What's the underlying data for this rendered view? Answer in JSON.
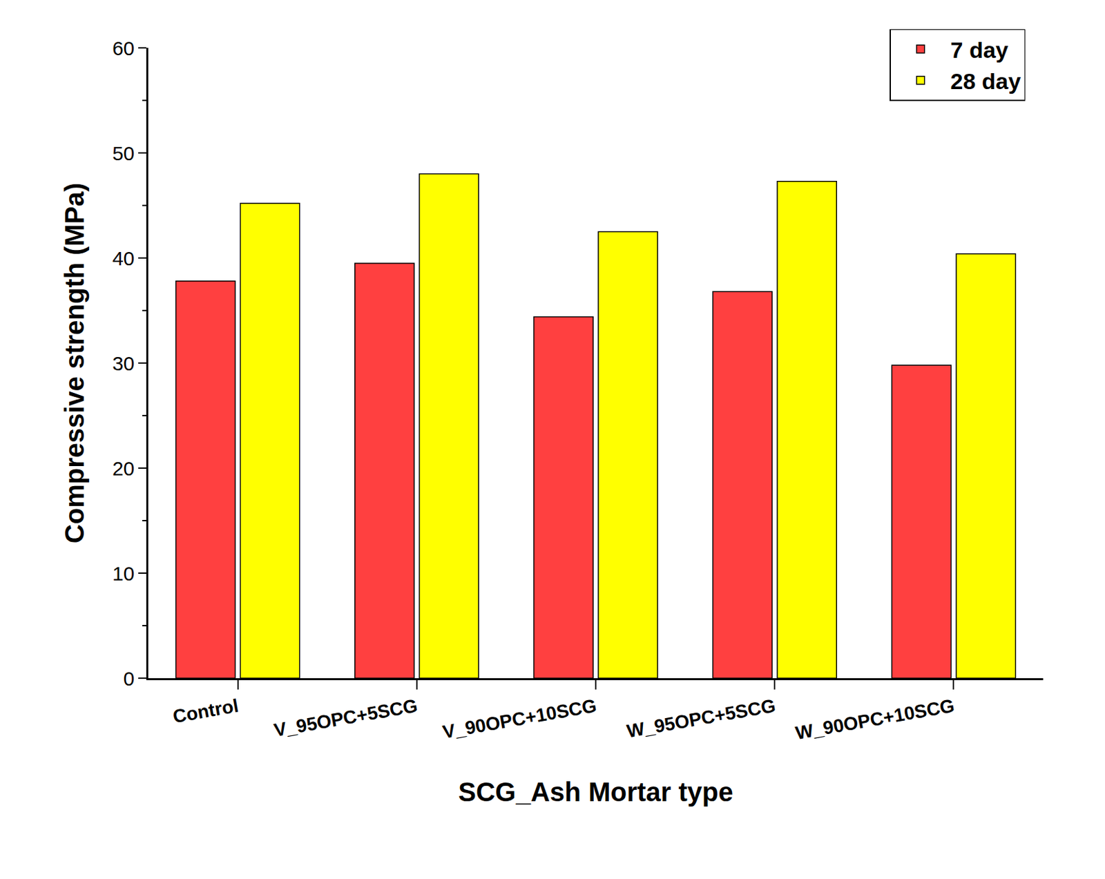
{
  "chart_data": {
    "type": "bar",
    "x_label": "SCG_Ash Mortar type",
    "y_label": "Compressive strength (MPa)",
    "categories": [
      "Control",
      "V_95OPC+5SCG",
      "V_90OPC+10SCG",
      "W_95OPC+5SCG",
      "W_90OPC+10SCG"
    ],
    "series": [
      {
        "name": "7 day",
        "color": "#ff4040",
        "values": [
          37.8,
          39.5,
          34.4,
          36.8,
          29.8
        ]
      },
      {
        "name": "28 day",
        "color": "#ffff00",
        "values": [
          45.2,
          48.0,
          42.5,
          47.3,
          40.4
        ]
      }
    ],
    "ylim": [
      0,
      60
    ],
    "yticks": [
      0,
      10,
      20,
      30,
      40,
      50,
      60
    ],
    "grid": false,
    "legend": "upper right"
  }
}
